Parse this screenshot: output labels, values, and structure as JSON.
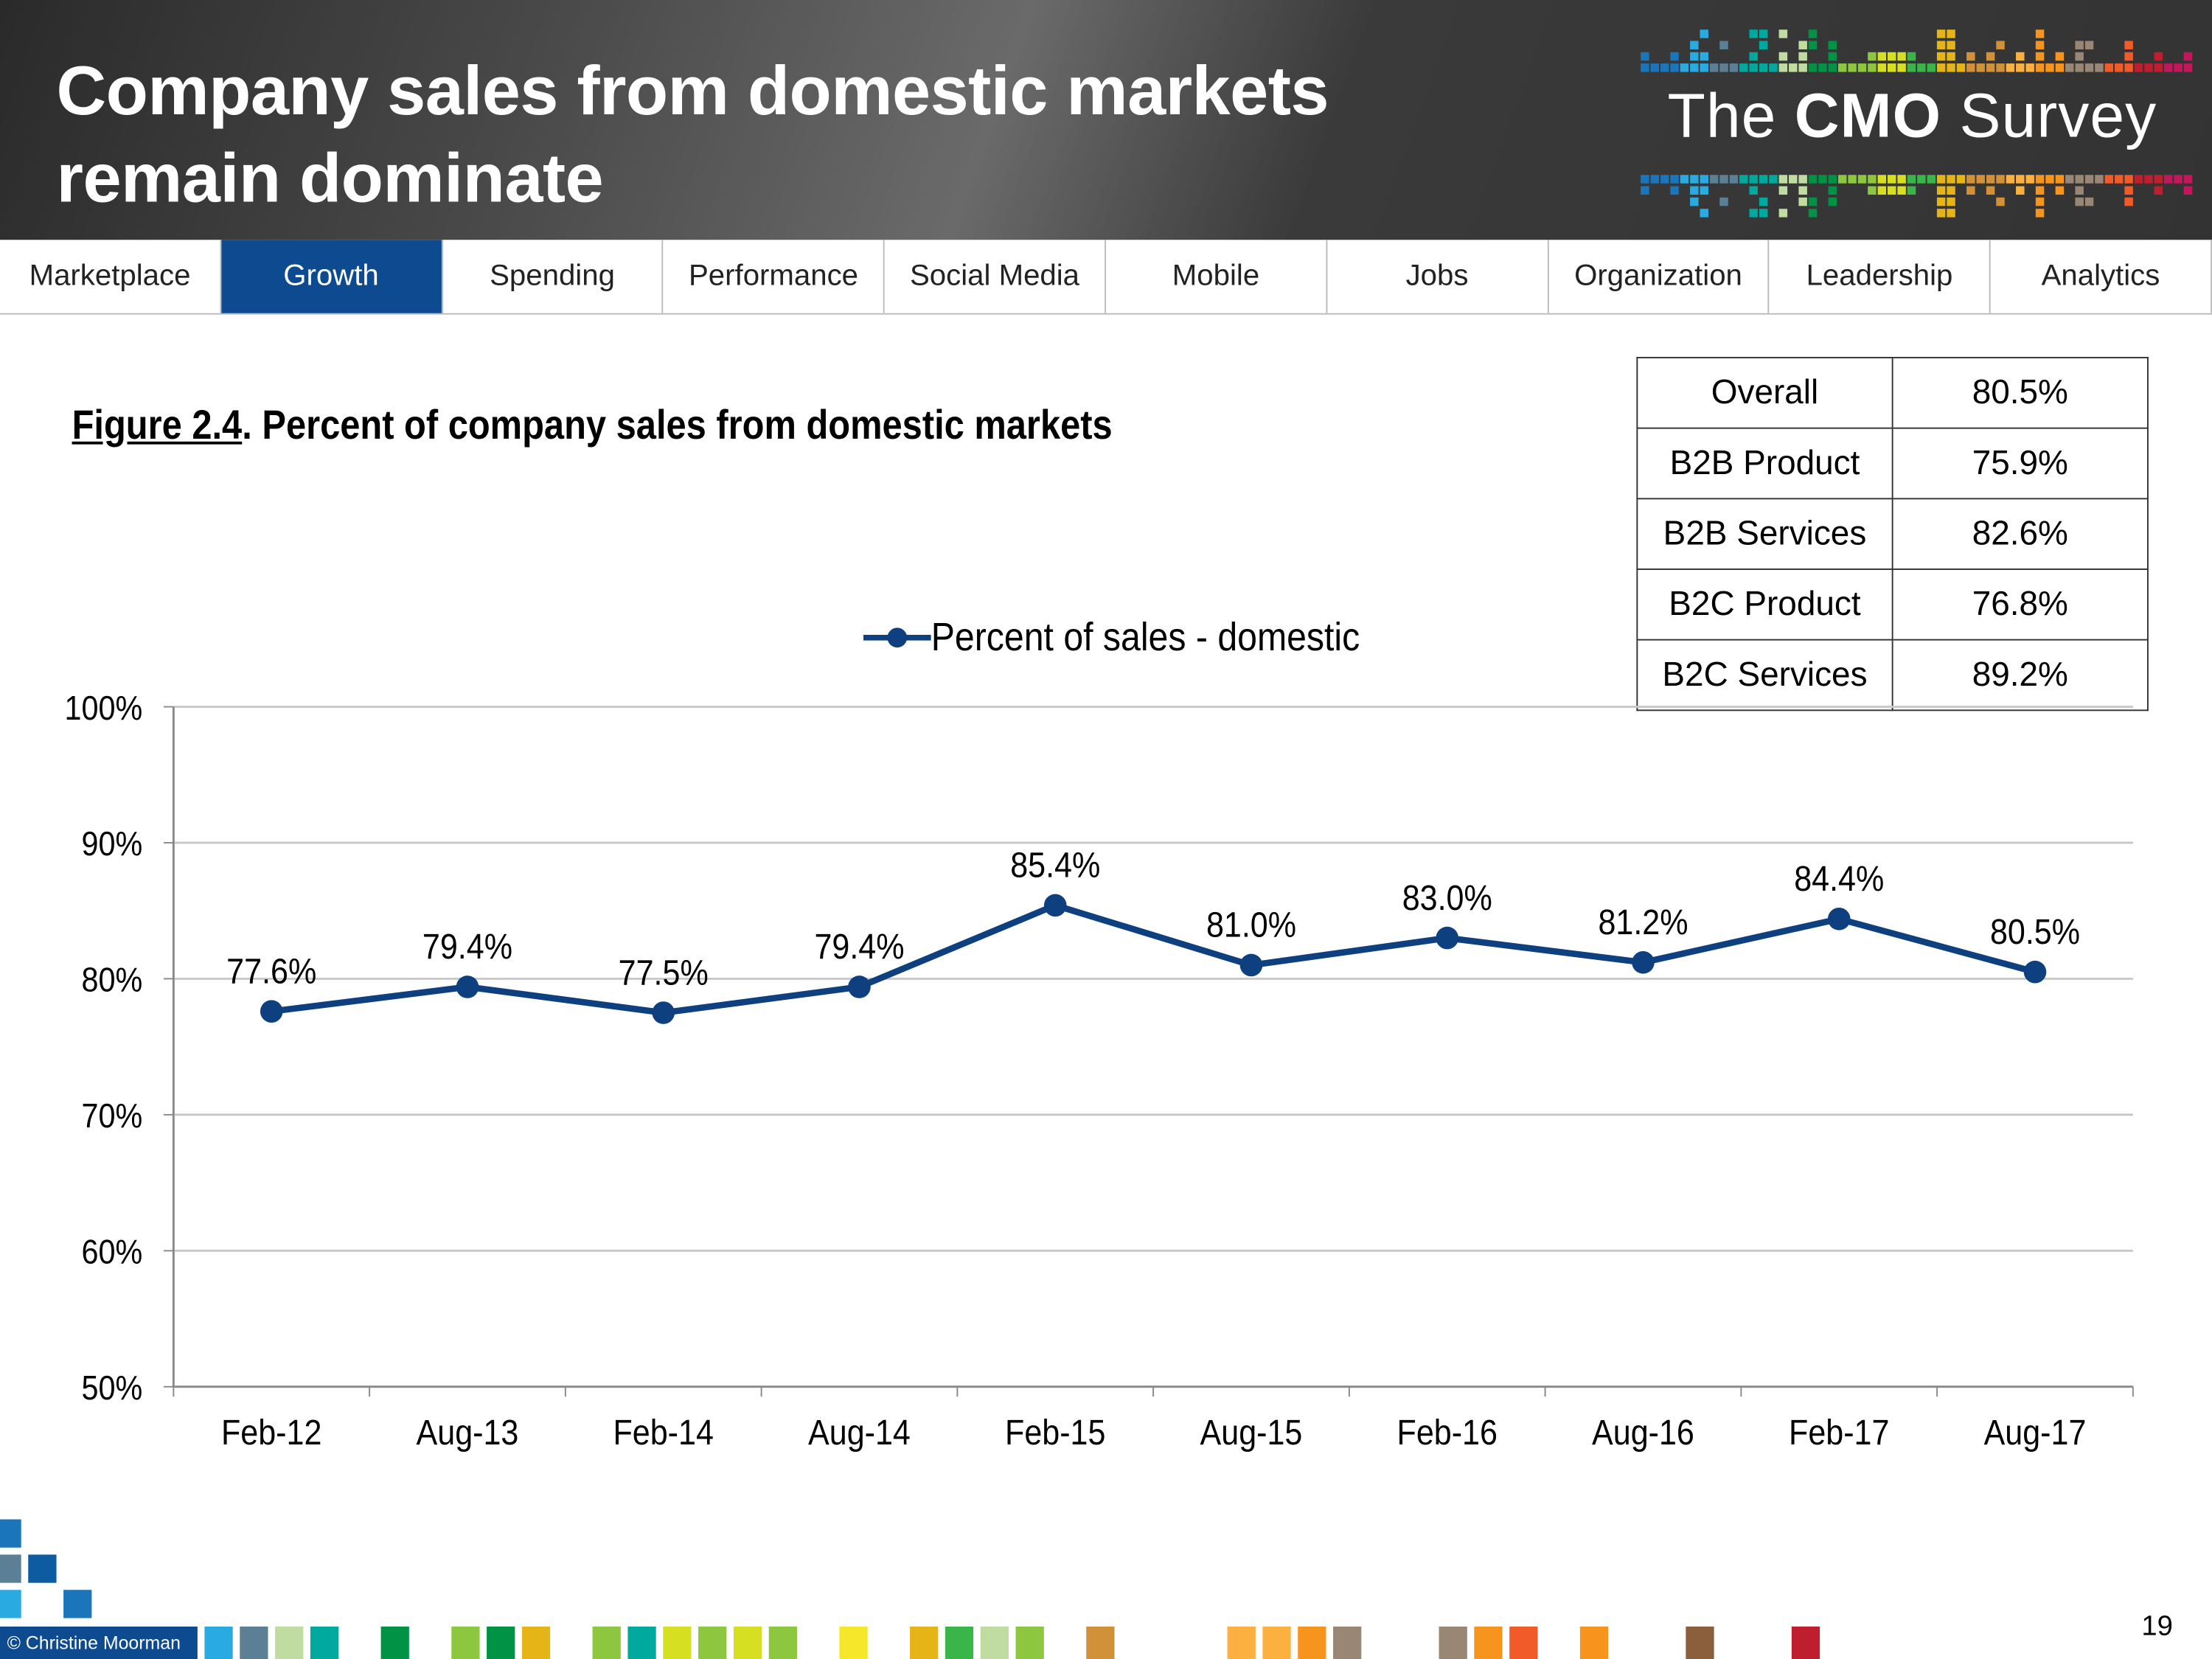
{
  "header": {
    "title_line1": "Company sales from domestic markets",
    "title_line2": "remain dominate",
    "logo": "The CMO Survey"
  },
  "nav": {
    "active": "Growth",
    "tabs": [
      "Marketplace",
      "Growth",
      "Spending",
      "Performance",
      "Social Media",
      "Mobile",
      "Jobs",
      "Organization",
      "Leadership",
      "Analytics"
    ]
  },
  "figure": {
    "label": "Figure 2.4",
    "title": ".  Percent of company sales from domestic markets"
  },
  "segments": [
    {
      "label": "Overall",
      "value": "80.5%"
    },
    {
      "label": "B2B Product",
      "value": "75.9%"
    },
    {
      "label": "B2B Services",
      "value": "82.6%"
    },
    {
      "label": "B2C Product",
      "value": "76.8%"
    },
    {
      "label": "B2C Services",
      "value": "89.2%"
    }
  ],
  "chart_data": {
    "type": "line",
    "categories": [
      "Feb-12",
      "Aug-13",
      "Feb-14",
      "Aug-14",
      "Feb-15",
      "Aug-15",
      "Feb-16",
      "Aug-16",
      "Feb-17",
      "Aug-17"
    ],
    "series": [
      {
        "name": "Percent of sales - domestic",
        "values": [
          77.6,
          79.4,
          77.5,
          79.4,
          85.4,
          81.0,
          83.0,
          81.2,
          84.4,
          80.5
        ],
        "labels": [
          "77.6%",
          "79.4%",
          "77.5%",
          "79.4%",
          "85.4%",
          "81.0%",
          "83.0%",
          "81.2%",
          "84.4%",
          "80.5%"
        ],
        "color": "#0e3f7f"
      }
    ],
    "yticks": [
      "50%",
      "60%",
      "70%",
      "80%",
      "90%",
      "100%"
    ],
    "ylim": [
      50,
      100
    ],
    "grid": true,
    "legend": "top-center"
  },
  "footer": {
    "copyright": "© Christine Moorman",
    "page": "19"
  },
  "colors": {
    "accent": "#0d4a8f",
    "line": "#0e3f7f"
  }
}
